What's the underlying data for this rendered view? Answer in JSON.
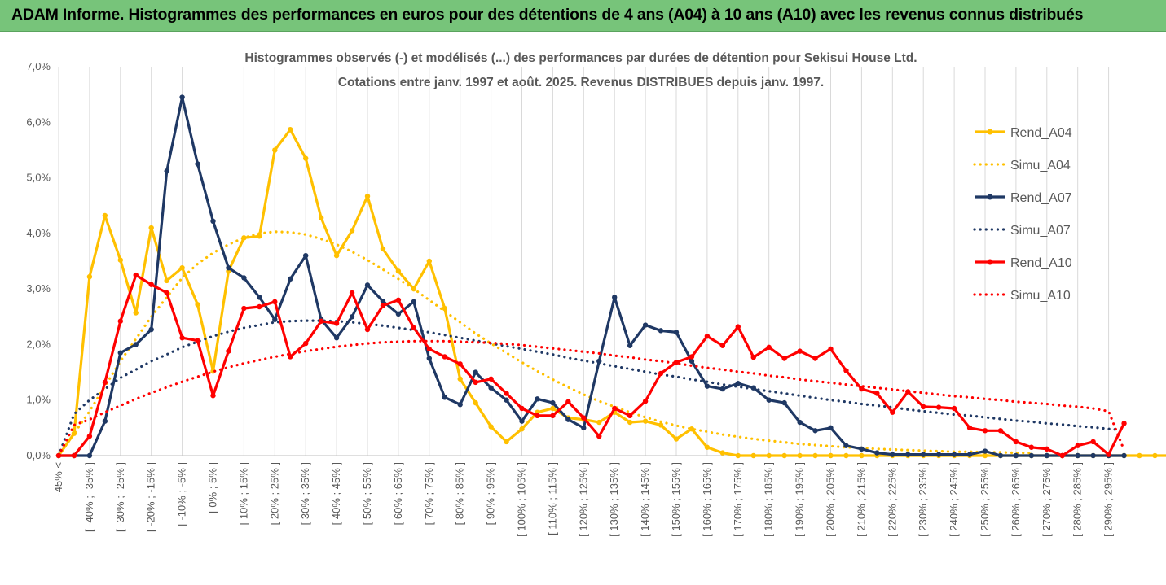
{
  "banner": {
    "title": "ADAM Informe. Histogrammes des performances en euros pour des détentions de 4 ans (A04) à 10 ans (A10) avec les revenus connus distribués",
    "background": "#77c47a"
  },
  "chart_data": {
    "type": "line",
    "title_line1": "Histogrammes observés (-) et modélisés (...) des performances par durées de détention pour Sekisui House Ltd.",
    "title_line2": "Cotations entre janv. 1997 et août. 2025. Revenus DISTRIBUES depuis janv. 1997.",
    "ylim": [
      0,
      7
    ],
    "yticks": [
      0,
      1,
      2,
      3,
      4,
      5,
      6,
      7
    ],
    "ytick_labels": [
      "0,0%",
      "1,0%",
      "2,0%",
      "3,0%",
      "4,0%",
      "5,0%",
      "6,0%",
      "7,0%"
    ],
    "grid": "vertical",
    "legend_position": "right",
    "x_tick_labels": [
      "-45% <",
      "[ -40% ; -35% ]",
      "[ -30% ; -25% ]",
      "[ -20% ; -15% ]",
      "[ -10% ; -5% ]",
      "[ 0% ; 5% ]",
      "[ 10% ; 15% ]",
      "[ 20% ; 25% ]",
      "[ 30% ; 35% ]",
      "[ 40% ; 45% ]",
      "[ 50% ; 55% ]",
      "[ 60% ; 65% ]",
      "[ 70% ; 75% ]",
      "[ 80% ; 85% ]",
      "[ 90% ; 95% ]",
      "[ 100% ; 105% ]",
      "[ 110% ; 115% ]",
      "[ 120% ; 125% ]",
      "[ 130% ; 135% ]",
      "[ 140% ; 145% ]",
      "[ 150% ; 155% ]",
      "[ 160% ; 165% ]",
      "[ 170% ; 175% ]",
      "[ 180% ; 185% ]",
      "[ 190% ; 195% ]",
      "[ 200% ; 205% ]",
      "[ 210% ; 215% ]",
      "[ 220% ; 225% ]",
      "[ 230% ; 235% ]",
      "[ 240% ; 245% ]",
      "[ 250% ; 255% ]",
      "[ 260% ; 265% ]",
      "[ 270% ; 275% ]",
      "[ 280% ; 285% ]",
      "[ 290% ; 295% ]"
    ],
    "series": [
      {
        "name": "Rend_A04",
        "style": "solid",
        "color": "#ffc000",
        "values": [
          0.0,
          0.4,
          3.22,
          4.32,
          3.52,
          2.57,
          4.1,
          3.15,
          3.38,
          2.72,
          1.52,
          3.32,
          3.92,
          3.95,
          5.5,
          5.87,
          5.35,
          4.28,
          3.6,
          4.05,
          4.67,
          3.72,
          3.32,
          3.0,
          3.5,
          2.65,
          1.38,
          0.95,
          0.52,
          0.25,
          0.48,
          0.78,
          0.85,
          0.68,
          0.65,
          0.6,
          0.78,
          0.6,
          0.62,
          0.55,
          0.3,
          0.48,
          0.15,
          0.05,
          0.0,
          0.0,
          0.0,
          0.0,
          0.0,
          0.0,
          0.0,
          0.0,
          0.0,
          0.0,
          0.0,
          0.0,
          0.0,
          0.0,
          0.0,
          0.0,
          0.0,
          0.0,
          0.0,
          0.0,
          0.0,
          0.0,
          0.0,
          0.0,
          0.0,
          0.0,
          0.0,
          0.0,
          0.0,
          0.0,
          0.0,
          0.0,
          0.0,
          0.0,
          0.0,
          0.0,
          0.0,
          0.0,
          0.0,
          0.0,
          0.0,
          0.0,
          0.0,
          0.0,
          0.0,
          0.0,
          0.0,
          0.0,
          0.0,
          0.0,
          0.0,
          0.0,
          0.0,
          0.0,
          0.0,
          0.0,
          0.0,
          0.0,
          0.0,
          0.0,
          0.0,
          0.0,
          0.0,
          0.0,
          0.0,
          0.0,
          0.0,
          0.0,
          0.0,
          0.0,
          0.0,
          0.0,
          0.0,
          0.0,
          0.0,
          0.0,
          0.0,
          0.0,
          0.0,
          0.0,
          0.0,
          0.0,
          0.0,
          0.0,
          0.0,
          0.0,
          0.0,
          0.0,
          0.0,
          0.0,
          0.0,
          0.0,
          0.0,
          0.0,
          0.0,
          0.0,
          0.0,
          0.0,
          0.0,
          0.0,
          0.0,
          0.0,
          0.0,
          0.0,
          0.0,
          0.0,
          0.0,
          0.0,
          0.0
        ]
      },
      {
        "name": "Simu_A04",
        "style": "dotted",
        "color": "#ffc000",
        "values": [
          0.0,
          0.4,
          0.8,
          1.25,
          1.7,
          2.1,
          2.5,
          2.85,
          3.2,
          3.45,
          3.65,
          3.8,
          3.92,
          4.0,
          4.03,
          4.02,
          3.98,
          3.9,
          3.8,
          3.67,
          3.52,
          3.35,
          3.18,
          3.0,
          2.8,
          2.6,
          2.4,
          2.2,
          2.02,
          1.85,
          1.68,
          1.52,
          1.37,
          1.23,
          1.1,
          0.98,
          0.88,
          0.78,
          0.69,
          0.61,
          0.54,
          0.48,
          0.43,
          0.38,
          0.34,
          0.3,
          0.27,
          0.24,
          0.21,
          0.19,
          0.17,
          0.15,
          0.14,
          0.12,
          0.11,
          0.1,
          0.09,
          0.08,
          0.07,
          0.07,
          0.06,
          0.06,
          0.05,
          0.05
        ]
      },
      {
        "name": "Rend_A07",
        "style": "solid",
        "color": "#1f3864",
        "values": [
          0.0,
          0.0,
          0.0,
          0.62,
          1.85,
          2.0,
          2.27,
          5.12,
          6.45,
          5.25,
          4.22,
          3.38,
          3.2,
          2.85,
          2.45,
          3.18,
          3.6,
          2.45,
          2.12,
          2.5,
          3.07,
          2.78,
          2.55,
          2.77,
          1.75,
          1.05,
          0.92,
          1.5,
          1.22,
          1.0,
          0.62,
          1.02,
          0.95,
          0.65,
          0.5,
          1.7,
          2.85,
          1.98,
          2.35,
          2.25,
          2.22,
          1.7,
          1.25,
          1.2,
          1.3,
          1.22,
          1.0,
          0.95,
          0.6,
          0.45,
          0.5,
          0.18,
          0.12,
          0.05,
          0.02,
          0.02,
          0.02,
          0.02,
          0.02,
          0.02,
          0.08,
          0.0,
          0.0,
          0.0,
          0.0,
          0.0,
          0.0,
          0.0,
          0.0,
          0.0
        ]
      },
      {
        "name": "Simu_A07",
        "style": "dotted",
        "color": "#1f3864",
        "values": [
          0.0,
          0.75,
          1.0,
          1.2,
          1.4,
          1.55,
          1.7,
          1.82,
          1.95,
          2.05,
          2.15,
          2.23,
          2.3,
          2.35,
          2.4,
          2.42,
          2.43,
          2.43,
          2.42,
          2.4,
          2.37,
          2.34,
          2.3,
          2.26,
          2.22,
          2.17,
          2.12,
          2.07,
          2.02,
          1.97,
          1.92,
          1.87,
          1.82,
          1.76,
          1.71,
          1.66,
          1.61,
          1.56,
          1.51,
          1.46,
          1.42,
          1.37,
          1.33,
          1.28,
          1.24,
          1.2,
          1.16,
          1.12,
          1.08,
          1.04,
          1.0,
          0.97,
          0.93,
          0.9,
          0.87,
          0.83,
          0.8,
          0.77,
          0.74,
          0.72,
          0.69,
          0.66,
          0.63,
          0.61,
          0.58,
          0.56,
          0.53,
          0.51,
          0.48,
          0.46
        ]
      },
      {
        "name": "Rend_A10",
        "style": "solid",
        "color": "#ff0000",
        "values": [
          0.0,
          0.0,
          0.35,
          1.32,
          2.42,
          3.25,
          3.08,
          2.93,
          2.12,
          2.07,
          1.08,
          1.88,
          2.65,
          2.68,
          2.77,
          1.78,
          2.02,
          2.42,
          2.38,
          2.93,
          2.27,
          2.7,
          2.8,
          2.3,
          1.92,
          1.78,
          1.65,
          1.32,
          1.38,
          1.12,
          0.85,
          0.72,
          0.72,
          0.97,
          0.68,
          0.35,
          0.85,
          0.72,
          0.98,
          1.48,
          1.68,
          1.78,
          2.15,
          1.98,
          2.32,
          1.77,
          1.95,
          1.75,
          1.88,
          1.75,
          1.92,
          1.53,
          1.2,
          1.12,
          0.78,
          1.15,
          0.88,
          0.87,
          0.85,
          0.5,
          0.45,
          0.45,
          0.25,
          0.15,
          0.12,
          0.0,
          0.18,
          0.25,
          0.02,
          0.58
        ]
      },
      {
        "name": "Simu_A10",
        "style": "dotted",
        "color": "#ff0000",
        "values": [
          0.0,
          0.55,
          0.65,
          0.78,
          0.9,
          1.02,
          1.13,
          1.23,
          1.33,
          1.42,
          1.51,
          1.59,
          1.66,
          1.72,
          1.78,
          1.83,
          1.88,
          1.92,
          1.96,
          1.99,
          2.02,
          2.04,
          2.05,
          2.06,
          2.06,
          2.06,
          2.05,
          2.04,
          2.03,
          2.01,
          1.99,
          1.96,
          1.93,
          1.9,
          1.87,
          1.84,
          1.8,
          1.77,
          1.73,
          1.7,
          1.66,
          1.62,
          1.58,
          1.55,
          1.51,
          1.48,
          1.44,
          1.41,
          1.37,
          1.34,
          1.31,
          1.28,
          1.25,
          1.22,
          1.19,
          1.16,
          1.13,
          1.1,
          1.07,
          1.05,
          1.02,
          1.0,
          0.97,
          0.95,
          0.93,
          0.9,
          0.88,
          0.85,
          0.8,
          0.1
        ]
      }
    ]
  }
}
